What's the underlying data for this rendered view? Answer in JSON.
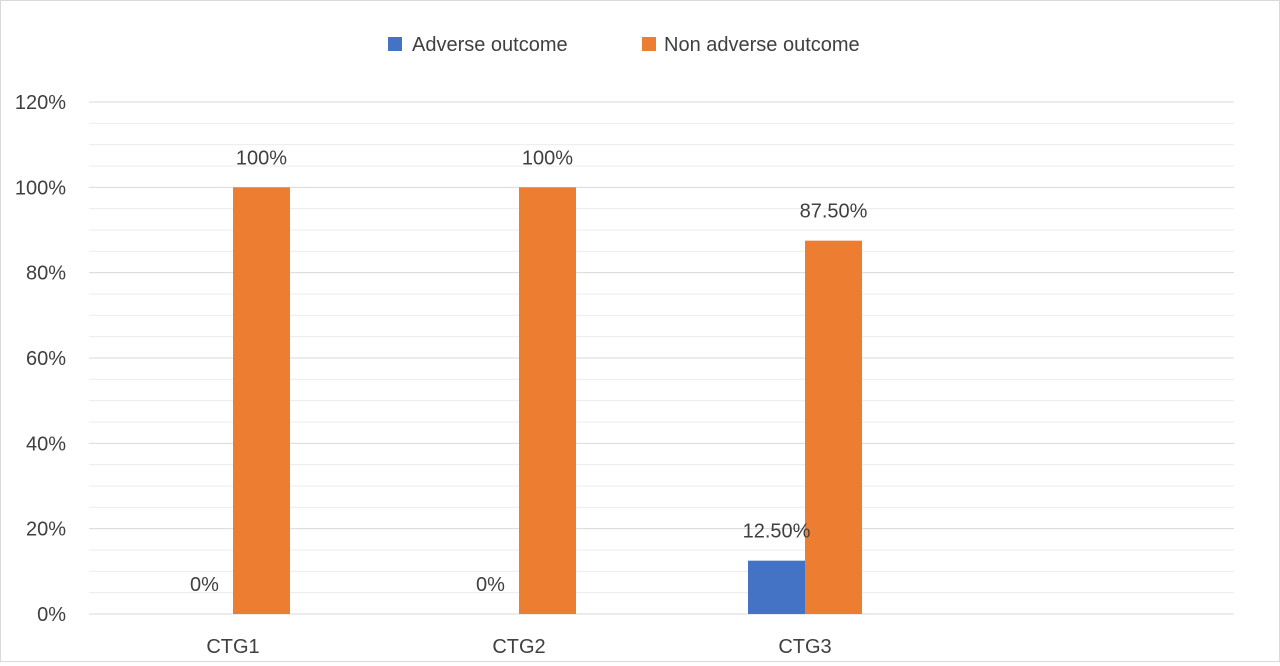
{
  "chart_data": {
    "type": "bar",
    "title": "",
    "xlabel": "",
    "ylabel": "",
    "categories": [
      "CTG1",
      "CTG2",
      "CTG3"
    ],
    "series": [
      {
        "name": "Adverse outcome",
        "color": "#4472c4",
        "values": [
          0,
          0,
          12.5
        ],
        "labels": [
          "0%",
          "0%",
          "12.50%"
        ]
      },
      {
        "name": "Non adverse outcome",
        "color": "#ed7d31",
        "values": [
          100,
          100,
          87.5
        ],
        "labels": [
          "100%",
          "100%",
          "87.50%"
        ]
      }
    ],
    "ylim": [
      0,
      120
    ],
    "yticks": [
      0,
      20,
      40,
      60,
      80,
      100,
      120
    ],
    "ytick_labels": [
      "0%",
      "20%",
      "40%",
      "60%",
      "80%",
      "100%",
      "120%"
    ],
    "grid": true,
    "legend_position": "top-center"
  }
}
